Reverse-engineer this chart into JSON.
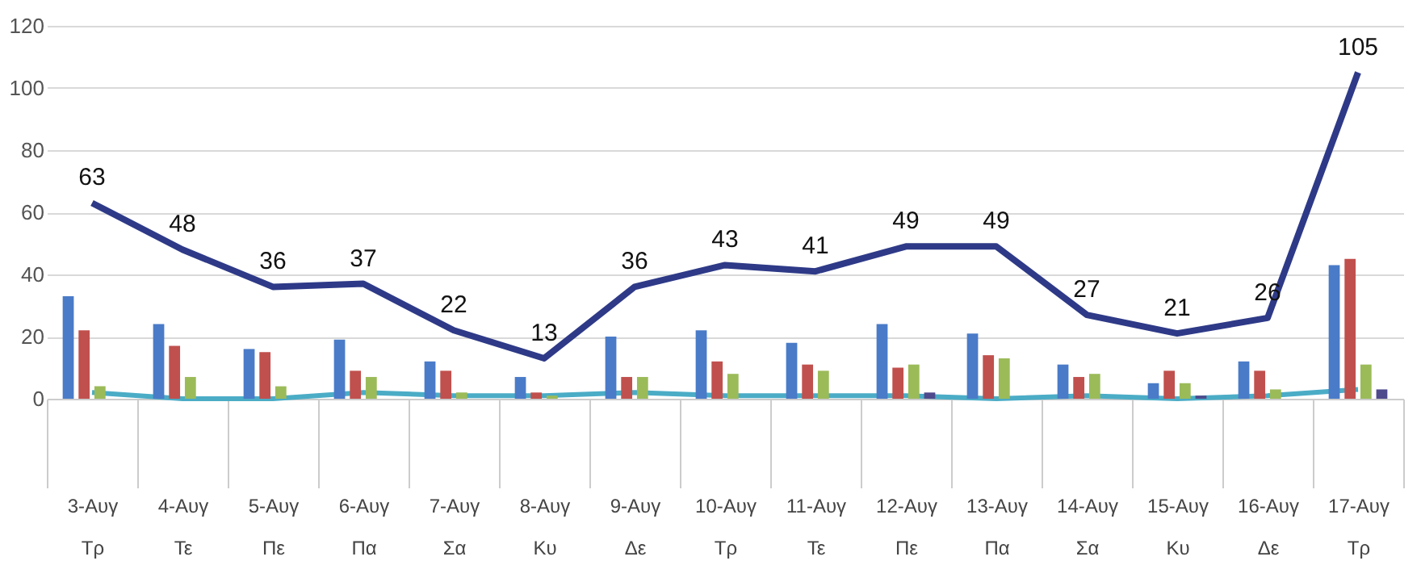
{
  "chart_data": {
    "type": "bar",
    "categories": [
      "3-Αυγ\nΤρ",
      "4-Αυγ\nΤε",
      "5-Αυγ\nΠε",
      "6-Αυγ\nΠα",
      "7-Αυγ\nΣα",
      "8-Αυγ\nΚυ",
      "9-Αυγ\nΔε",
      "10-Αυγ\nΤρ",
      "11-Αυγ\nΤε",
      "12-Αυγ\nΠε",
      "13-Αυγ\nΠα",
      "14-Αυγ\nΣα",
      "15-Αυγ\nΚυ",
      "16-Αυγ\nΔε",
      "17-Αυγ\nΤρ"
    ],
    "series": [
      {
        "color": "#4a7bc8",
        "values": [
          33,
          24,
          16,
          19,
          12,
          7,
          20,
          22,
          18,
          24,
          21,
          11,
          5,
          12,
          43
        ]
      },
      {
        "color": "#c0504d",
        "values": [
          22,
          17,
          15,
          9,
          9,
          2,
          7,
          12,
          11,
          10,
          14,
          7,
          9,
          9,
          45
        ]
      },
      {
        "color": "#9bbb59",
        "values": [
          4,
          7,
          4,
          7,
          2,
          1,
          7,
          8,
          9,
          11,
          13,
          8,
          5,
          3,
          11
        ]
      },
      {
        "color": "#4e4a8c",
        "values": [
          0,
          0,
          0,
          0,
          0,
          0,
          0,
          0,
          0,
          2,
          0,
          0,
          1,
          0,
          3
        ]
      },
      {
        "type": "line",
        "color": "#4bacc6",
        "values": [
          2,
          0,
          0,
          2,
          1,
          1,
          2,
          1,
          1,
          1,
          0,
          1,
          0,
          1,
          3
        ]
      },
      {
        "type": "line",
        "color": "#2e3a87",
        "values": [
          63,
          48,
          36,
          37,
          22,
          13,
          36,
          43,
          41,
          49,
          49,
          27,
          21,
          26,
          105
        ],
        "value_labels": [
          "63",
          "48",
          "36",
          "37",
          "22",
          "13",
          "36",
          "43",
          "41",
          "49",
          "49",
          "27",
          "21",
          "26",
          "105"
        ]
      }
    ],
    "ylim": [
      0,
      120
    ],
    "yticks": [
      0,
      20,
      40,
      60,
      80,
      100,
      120
    ],
    "grid": "y",
    "marker": "none"
  }
}
